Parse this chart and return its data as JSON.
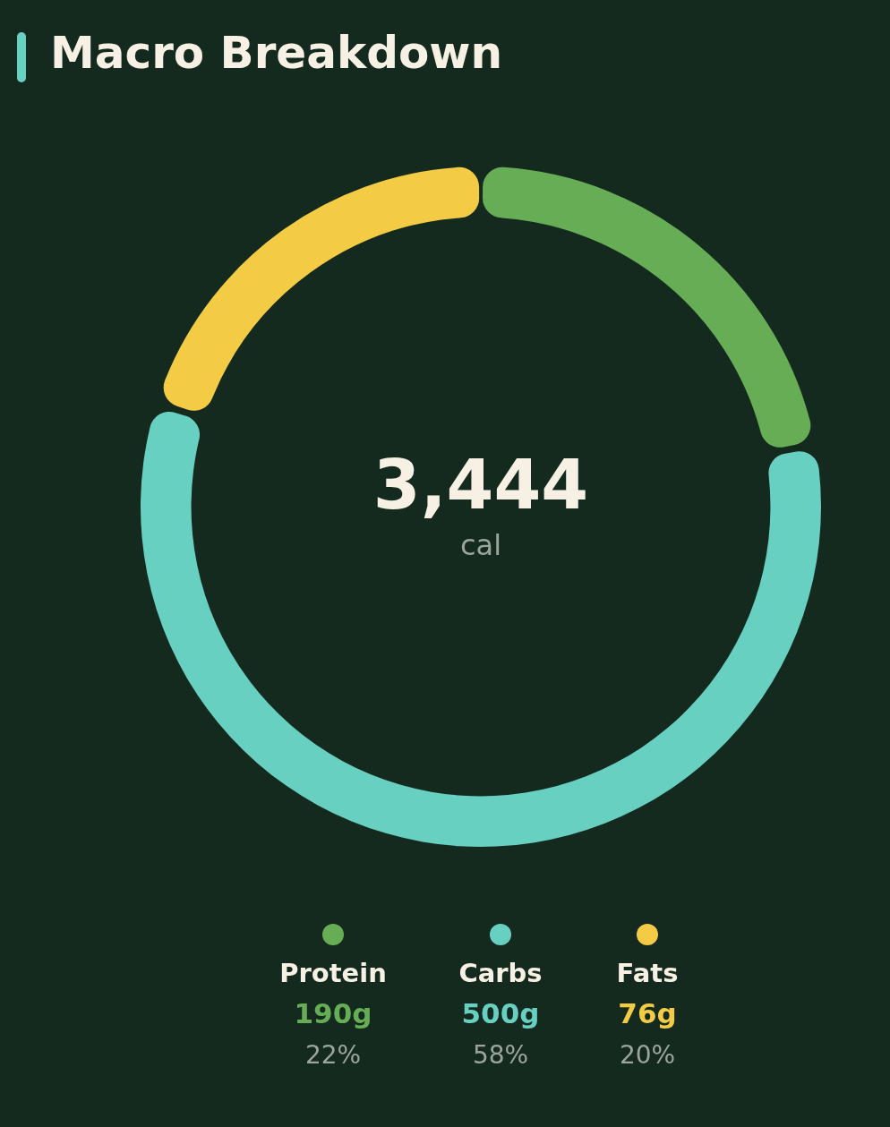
{
  "chart_data": {
    "type": "donut",
    "title": "Macro Breakdown",
    "categories": [
      "Protein",
      "Carbs",
      "Fats"
    ],
    "values": [
      22,
      58,
      20
    ],
    "colors": [
      "#66ad55",
      "#68d0c0",
      "#f4cb45"
    ],
    "annotations": [
      "3,444",
      "cal",
      "190g",
      "500g",
      "76g",
      "22%",
      "58%",
      "20%"
    ],
    "legend": "bottom"
  }
}
